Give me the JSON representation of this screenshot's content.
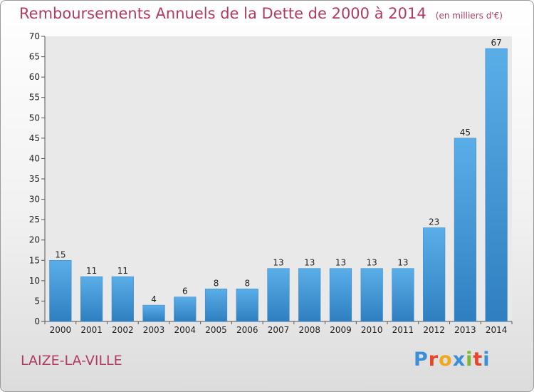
{
  "header": {
    "title": "Remboursements Annuels de la Dette de 2000 à 2014",
    "subtitle": "(en milliers d'€)"
  },
  "footer": {
    "commune": "LAIZE-LA-VILLE",
    "logo": "Proxiti",
    "logo_colors": [
      "#3a8fd8",
      "#e8452c",
      "#f0a81c",
      "#3a8fd8",
      "#7cb82f",
      "#e8452c",
      "#3a8fd8"
    ]
  },
  "chart_data": {
    "type": "bar",
    "title": "Remboursements Annuels de la Dette de 2000 à 2014",
    "subtitle": "(en milliers d'€)",
    "categories": [
      "2000",
      "2001",
      "2002",
      "2003",
      "2004",
      "2005",
      "2006",
      "2007",
      "2008",
      "2009",
      "2010",
      "2011",
      "2012",
      "2013",
      "2014"
    ],
    "values": [
      15,
      11,
      11,
      4,
      6,
      8,
      8,
      13,
      13,
      13,
      13,
      13,
      23,
      45,
      67
    ],
    "ylim": [
      0,
      70
    ],
    "yticks": [
      0,
      5,
      10,
      15,
      20,
      25,
      30,
      35,
      40,
      45,
      50,
      55,
      60,
      65,
      70
    ],
    "grid": false,
    "bar_color_top": "#5aaee8",
    "bar_color_bottom": "#2f7fc0"
  }
}
